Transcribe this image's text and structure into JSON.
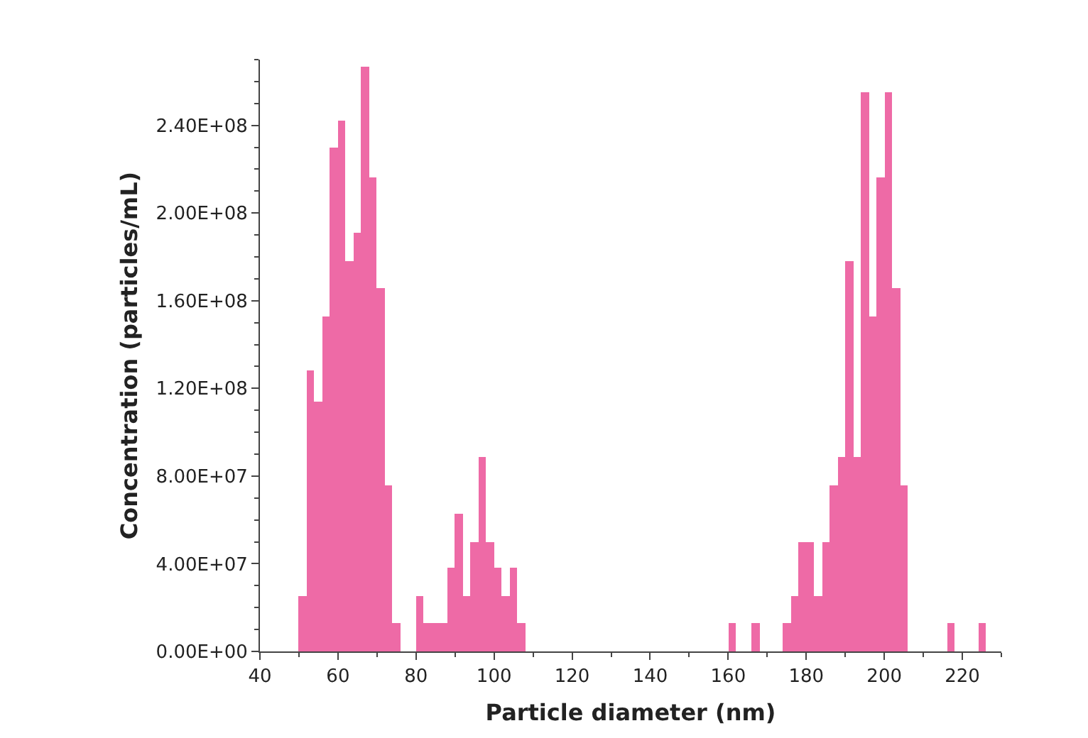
{
  "chart_data": {
    "type": "histogram",
    "xlabel": "Particle diameter (nm)",
    "ylabel": "Concentration (particles/mL)",
    "bins": [
      50,
      52,
      54,
      56,
      58,
      60,
      62,
      64,
      66,
      68,
      70,
      72,
      74,
      76,
      78,
      80,
      82,
      84,
      86,
      88,
      90,
      92,
      94,
      96,
      98,
      100,
      102,
      104,
      106,
      108,
      110,
      112,
      114,
      116,
      118,
      120,
      122,
      124,
      126,
      128,
      130,
      132,
      134,
      136,
      138,
      140,
      142,
      144,
      146,
      148,
      150,
      152,
      154,
      156,
      158,
      160,
      162,
      164,
      166,
      168,
      170,
      172,
      174,
      176,
      178,
      180,
      182,
      184,
      186,
      188,
      190,
      192,
      194,
      196,
      198,
      200,
      202,
      204,
      206,
      208,
      210,
      212,
      214,
      216,
      218,
      220,
      222,
      224,
      226
    ],
    "values": [
      25000000.0,
      128000000.0,
      114000000.0,
      153000000.0,
      230000000.0,
      242000000.0,
      178000000.0,
      191000000.0,
      267000000.0,
      216000000.0,
      166000000.0,
      76000000.0,
      13000000.0,
      0,
      0,
      25000000.0,
      13000000.0,
      13000000.0,
      13000000.0,
      38000000.0,
      63000000.0,
      25000000.0,
      50000000.0,
      89000000.0,
      50000000.0,
      38000000.0,
      25000000.0,
      38000000.0,
      13000000.0,
      0,
      0,
      0,
      0,
      0,
      0,
      0,
      0,
      0,
      0,
      0,
      0,
      0,
      0,
      0,
      0,
      0,
      0,
      0,
      0,
      0,
      0,
      0,
      0,
      0,
      0,
      13000000.0,
      0,
      0,
      13000000.0,
      0,
      0,
      0,
      13000000.0,
      25000000.0,
      50000000.0,
      50000000.0,
      25000000.0,
      50000000.0,
      76000000.0,
      89000000.0,
      178000000.0,
      89000000.0,
      255000000.0,
      153000000.0,
      216000000.0,
      255000000.0,
      166000000.0,
      76000000.0,
      0,
      0,
      0,
      0,
      0,
      13000000.0,
      0,
      0,
      0,
      13000000.0
    ],
    "color": "#ee6aa6",
    "xlim": [
      40,
      230
    ],
    "xticks": [
      40,
      60,
      80,
      100,
      120,
      140,
      160,
      180,
      200,
      220
    ],
    "ylim": [
      0,
      270000000.0
    ],
    "yticks": [
      {
        "value": 0,
        "label": "0.00E+00"
      },
      {
        "value": 40000000.0,
        "label": "4.00E+07"
      },
      {
        "value": 80000000.0,
        "label": "8.00E+07"
      },
      {
        "value": 120000000.0,
        "label": "1.20E+08"
      },
      {
        "value": 160000000.0,
        "label": "1.60E+08"
      },
      {
        "value": 200000000.0,
        "label": "2.00E+08"
      },
      {
        "value": 240000000.0,
        "label": "2.40E+08"
      }
    ]
  }
}
